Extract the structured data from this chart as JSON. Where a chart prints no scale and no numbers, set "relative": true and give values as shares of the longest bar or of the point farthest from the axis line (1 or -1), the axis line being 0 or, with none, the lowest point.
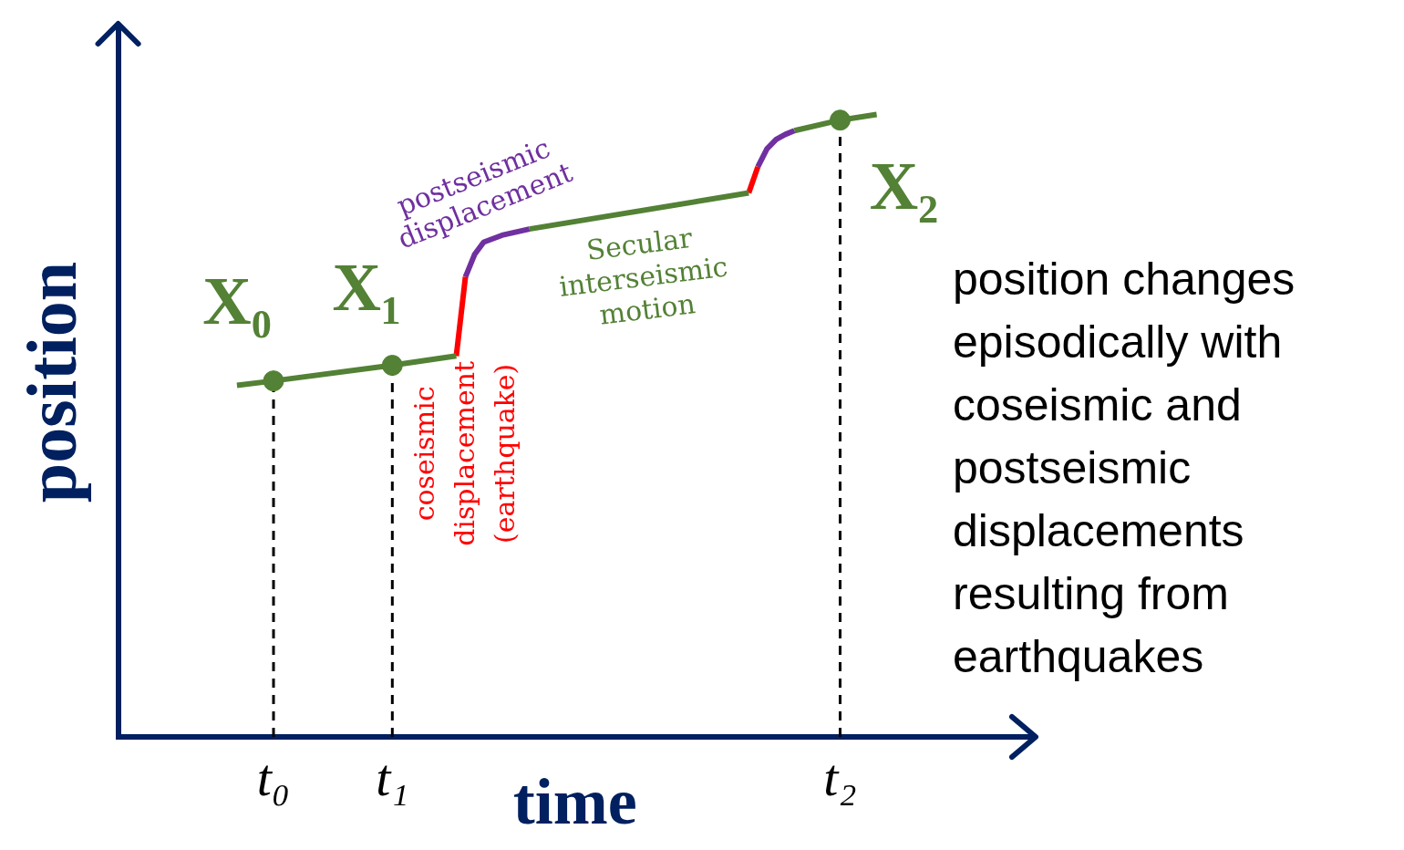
{
  "chart_data": {
    "type": "line",
    "relative": true,
    "xlabel": "time",
    "ylabel": "position",
    "legend": false,
    "categories": [
      null,
      null,
      null,
      null,
      null,
      null,
      null,
      null,
      null,
      null,
      null,
      null,
      null,
      null,
      null,
      null,
      null,
      "t₀",
      null,
      null,
      null,
      null,
      null,
      null,
      null,
      null,
      null,
      null,
      null,
      null,
      "t₁",
      null,
      null,
      null,
      null,
      null,
      null,
      null,
      null,
      null,
      null,
      null,
      null,
      null,
      null,
      null,
      null,
      null,
      null,
      null,
      null,
      null,
      null,
      null,
      null,
      null,
      null,
      null,
      null,
      null,
      null,
      null,
      null,
      null,
      null,
      null,
      null,
      null,
      null,
      null,
      null,
      null,
      null,
      null,
      null,
      null,
      null,
      null,
      null,
      "t₂",
      null,
      null,
      null,
      null,
      null,
      null,
      null,
      null,
      null,
      null,
      null,
      null,
      null,
      null,
      null,
      null,
      null,
      null,
      null,
      null,
      null
    ],
    "series": [
      {
        "color": "#538135",
        "values": [
          null,
          null,
          null,
          null,
          null,
          null,
          null,
          null,
          null,
          null,
          null,
          null,
          null,
          0.565,
          null,
          null,
          null,
          0.572,
          null,
          null,
          null,
          null,
          null,
          null,
          null,
          null,
          null,
          null,
          null,
          null,
          0.597,
          null,
          null,
          null,
          null,
          null,
          null,
          0.612,
          null,
          null,
          null,
          null,
          null,
          null,
          null,
          null,
          null,
          null,
          null,
          null,
          null,
          null,
          null,
          null,
          null,
          null,
          null,
          null,
          null,
          null,
          null,
          null,
          null,
          null,
          null,
          null,
          null,
          null,
          null,
          null,
          null,
          null,
          null,
          null,
          null,
          null,
          null,
          null,
          null,
          null,
          null,
          null,
          null,
          null,
          null,
          null,
          null,
          null,
          null,
          null,
          null,
          null,
          null,
          null,
          null,
          null,
          null,
          null,
          null,
          null,
          null
        ]
      },
      {
        "color": "#ff0000",
        "values": [
          null,
          null,
          null,
          null,
          null,
          null,
          null,
          null,
          null,
          null,
          null,
          null,
          null,
          null,
          null,
          null,
          null,
          null,
          null,
          null,
          null,
          null,
          null,
          null,
          null,
          null,
          null,
          null,
          null,
          null,
          null,
          null,
          null,
          null,
          null,
          null,
          null,
          0.612,
          0.739,
          null,
          null,
          null,
          null,
          null,
          null,
          null,
          null,
          null,
          null,
          null,
          null,
          null,
          null,
          null,
          null,
          null,
          null,
          null,
          null,
          null,
          null,
          null,
          null,
          null,
          null,
          null,
          null,
          null,
          null,
          null,
          null,
          null,
          null,
          null,
          null,
          null,
          null,
          null,
          null,
          null,
          null,
          null,
          null,
          null,
          null,
          null,
          null,
          null,
          null,
          null,
          null,
          null,
          null,
          null,
          null,
          null,
          null,
          null,
          null,
          null,
          null
        ]
      },
      {
        "color": "#7030a0",
        "values": [
          null,
          null,
          null,
          null,
          null,
          null,
          null,
          null,
          null,
          null,
          null,
          null,
          null,
          null,
          null,
          null,
          null,
          null,
          null,
          null,
          null,
          null,
          null,
          null,
          null,
          null,
          null,
          null,
          null,
          null,
          null,
          null,
          null,
          null,
          null,
          null,
          null,
          null,
          0.739,
          0.775,
          0.795,
          null,
          0.806,
          null,
          null,
          0.816,
          null,
          null,
          null,
          null,
          null,
          null,
          null,
          null,
          null,
          null,
          null,
          null,
          null,
          null,
          null,
          null,
          null,
          null,
          null,
          null,
          null,
          null,
          null,
          null,
          null,
          null,
          null,
          null,
          null,
          null,
          null,
          null,
          null,
          null,
          null,
          null,
          null,
          null,
          null,
          null,
          null,
          null,
          null,
          null,
          null,
          null,
          null,
          null,
          null,
          null,
          null,
          null,
          null,
          null,
          null
        ]
      },
      {
        "color": "#538135",
        "values": [
          null,
          null,
          null,
          null,
          null,
          null,
          null,
          null,
          null,
          null,
          null,
          null,
          null,
          null,
          null,
          null,
          null,
          null,
          null,
          null,
          null,
          null,
          null,
          null,
          null,
          null,
          null,
          null,
          null,
          null,
          null,
          null,
          null,
          null,
          null,
          null,
          null,
          null,
          null,
          null,
          null,
          null,
          null,
          null,
          null,
          0.816,
          null,
          null,
          null,
          null,
          null,
          null,
          null,
          null,
          null,
          null,
          null,
          null,
          null,
          null,
          null,
          null,
          null,
          null,
          null,
          null,
          null,
          null,
          null,
          0.874,
          null,
          null,
          null,
          null,
          null,
          null,
          null,
          null,
          null,
          null,
          null,
          null,
          null,
          null,
          null,
          null,
          null,
          null,
          null,
          null,
          null,
          null,
          null,
          null,
          null,
          null,
          null,
          null,
          null,
          null,
          null
        ]
      },
      {
        "color": "#ff0000",
        "values": [
          null,
          null,
          null,
          null,
          null,
          null,
          null,
          null,
          null,
          null,
          null,
          null,
          null,
          null,
          null,
          null,
          null,
          null,
          null,
          null,
          null,
          null,
          null,
          null,
          null,
          null,
          null,
          null,
          null,
          null,
          null,
          null,
          null,
          null,
          null,
          null,
          null,
          null,
          null,
          null,
          null,
          null,
          null,
          null,
          null,
          null,
          null,
          null,
          null,
          null,
          null,
          null,
          null,
          null,
          null,
          null,
          null,
          null,
          null,
          null,
          null,
          null,
          null,
          null,
          null,
          null,
          null,
          null,
          null,
          0.874,
          0.916,
          null,
          null,
          null,
          null,
          null,
          null,
          null,
          null,
          null,
          null,
          null,
          null,
          null,
          null,
          null,
          null,
          null,
          null,
          null,
          null,
          null,
          null,
          null,
          null,
          null,
          null,
          null,
          null,
          null,
          null
        ]
      },
      {
        "color": "#7030a0",
        "values": [
          null,
          null,
          null,
          null,
          null,
          null,
          null,
          null,
          null,
          null,
          null,
          null,
          null,
          null,
          null,
          null,
          null,
          null,
          null,
          null,
          null,
          null,
          null,
          null,
          null,
          null,
          null,
          null,
          null,
          null,
          null,
          null,
          null,
          null,
          null,
          null,
          null,
          null,
          null,
          null,
          null,
          null,
          null,
          null,
          null,
          null,
          null,
          null,
          null,
          null,
          null,
          null,
          null,
          null,
          null,
          null,
          null,
          null,
          null,
          null,
          null,
          null,
          null,
          null,
          null,
          null,
          null,
          null,
          null,
          null,
          0.916,
          0.945,
          0.96,
          0.968,
          0.974,
          null,
          null,
          null,
          null,
          null,
          null,
          null,
          null,
          null,
          null,
          null,
          null,
          null,
          null,
          null,
          null,
          null,
          null,
          null,
          null,
          null,
          null,
          null,
          null,
          null,
          null
        ]
      },
      {
        "color": "#538135",
        "values": [
          null,
          null,
          null,
          null,
          null,
          null,
          null,
          null,
          null,
          null,
          null,
          null,
          null,
          null,
          null,
          null,
          null,
          null,
          null,
          null,
          null,
          null,
          null,
          null,
          null,
          null,
          null,
          null,
          null,
          null,
          null,
          null,
          null,
          null,
          null,
          null,
          null,
          null,
          null,
          null,
          null,
          null,
          null,
          null,
          null,
          null,
          null,
          null,
          null,
          null,
          null,
          null,
          null,
          null,
          null,
          null,
          null,
          null,
          null,
          null,
          null,
          null,
          null,
          null,
          null,
          null,
          null,
          null,
          null,
          null,
          null,
          null,
          null,
          null,
          0.974,
          null,
          null,
          null,
          null,
          0.991,
          null,
          null,
          null,
          1.0,
          null,
          null,
          null,
          null,
          null,
          null,
          null,
          null,
          null,
          null,
          null,
          null,
          null,
          null,
          null,
          null,
          null
        ]
      },
      {
        "type": "lollipop",
        "marker": "circle",
        "line_style": "dashed",
        "color": "#538135",
        "values": [
          null,
          null,
          null,
          null,
          null,
          null,
          null,
          null,
          null,
          null,
          null,
          null,
          null,
          null,
          null,
          null,
          null,
          0.572,
          null,
          null,
          null,
          null,
          null,
          null,
          null,
          null,
          null,
          null,
          null,
          null,
          0.597,
          null,
          null,
          null,
          null,
          null,
          null,
          null,
          null,
          null,
          null,
          null,
          null,
          null,
          null,
          null,
          null,
          null,
          null,
          null,
          null,
          null,
          null,
          null,
          null,
          null,
          null,
          null,
          null,
          null,
          null,
          null,
          null,
          null,
          null,
          null,
          null,
          null,
          null,
          null,
          null,
          null,
          null,
          null,
          null,
          null,
          null,
          null,
          null,
          0.991,
          null,
          null,
          null,
          null,
          null,
          null,
          null,
          null,
          null,
          null,
          null,
          null,
          null,
          null,
          null,
          null,
          null,
          null,
          null,
          null,
          null
        ]
      }
    ],
    "annotations": [
      {
        "text": "X₀",
        "x": "t₀",
        "y": 0.572
      },
      {
        "text": "X₁",
        "x": "t₁",
        "y": 0.597
      },
      {
        "text": "X₂",
        "x": "t₂",
        "y": 0.991
      },
      {
        "text": "postseismic displacement",
        "y": 0.797
      },
      {
        "text": "Secular interseismic motion",
        "y": 0.85
      },
      "coseismic displacement (earthquake)",
      "position changes episodically with coseismic and postseismic displacements resulting from earthquakes"
    ]
  }
}
